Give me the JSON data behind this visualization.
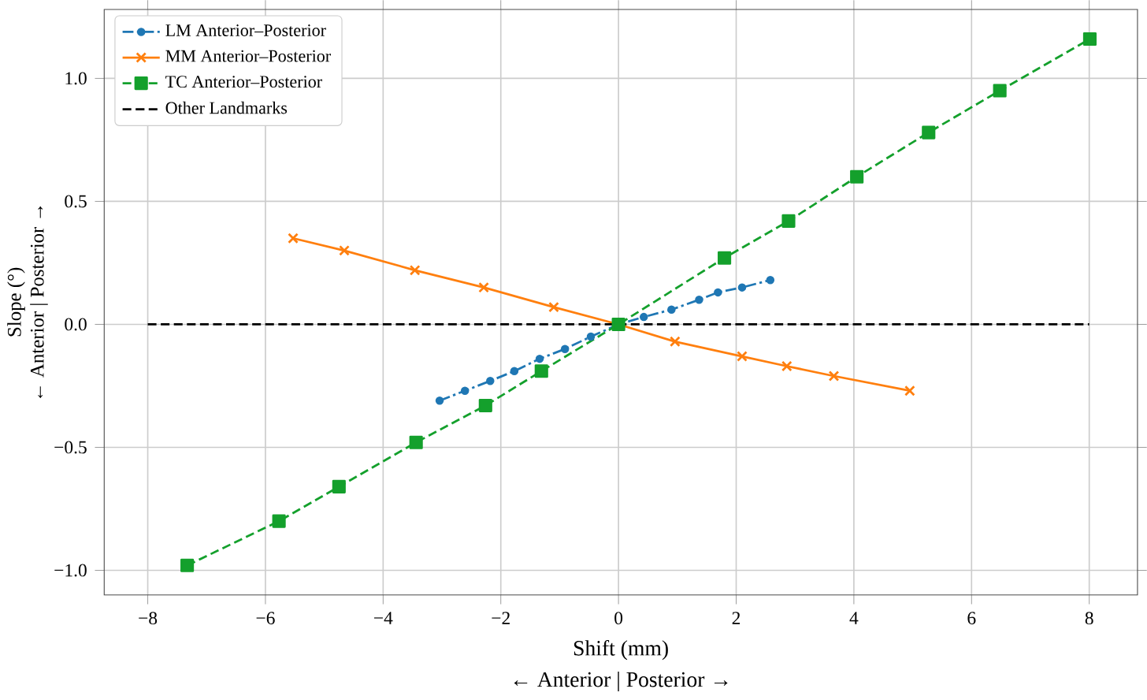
{
  "chart_data": {
    "type": "line",
    "xlabel": "Shift (mm)",
    "ylabel": "Slope (°)",
    "annotations": [
      "← Anterior   |   Posterior →",
      "← Anterior   |   Posterior →"
    ],
    "xlim": [
      -8.74,
      8.82
    ],
    "ylim": [
      -1.1,
      1.28
    ],
    "xticks": [
      {
        "value": -8,
        "label": "−8"
      },
      {
        "value": -6,
        "label": "−6"
      },
      {
        "value": -4,
        "label": "−4"
      },
      {
        "value": -2,
        "label": "−2"
      },
      0,
      2,
      4,
      6,
      8
    ],
    "yticks": [
      {
        "value": -1,
        "label": "−1.0"
      },
      {
        "value": -0.5,
        "label": "−0.5"
      },
      {
        "value": 0,
        "label": "0.0"
      },
      {
        "value": 0.5,
        "label": "0.5"
      },
      {
        "value": 1,
        "label": "1.0"
      }
    ],
    "grid": true,
    "legend": "top left",
    "series": [
      {
        "name": "LM Anterior–Posterior",
        "color": "#1f77b4",
        "marker": "circle",
        "line_style": "dashdot",
        "x": [
          -3.04,
          -2.61,
          -2.18,
          -1.77,
          -1.34,
          -0.91,
          -0.47,
          0,
          0.43,
          0.9,
          1.37,
          1.69,
          2.1,
          2.58
        ],
        "values": [
          -0.31,
          -0.27,
          -0.23,
          -0.19,
          -0.14,
          -0.1,
          -0.05,
          0,
          0.03,
          0.06,
          0.1,
          0.13,
          0.15,
          0.18
        ]
      },
      {
        "name": "MM Anterior–Posterior",
        "color": "#ff7f0e",
        "marker": "cross",
        "line_style": "solid",
        "x": [
          -5.53,
          -4.66,
          -3.46,
          -2.29,
          -1.1,
          0,
          0.96,
          2.1,
          2.86,
          3.66,
          4.95
        ],
        "values": [
          0.35,
          0.3,
          0.22,
          0.15,
          0.07,
          0,
          -0.07,
          -0.13,
          -0.17,
          -0.21,
          -0.27
        ]
      },
      {
        "name": "TC Anterior–Posterior",
        "color": "#14a02c",
        "marker": "square",
        "line_style": "dashed",
        "x": [
          -7.33,
          -5.77,
          -4.75,
          -3.44,
          -2.26,
          -1.31,
          0,
          1.8,
          2.89,
          4.05,
          5.27,
          6.48,
          8.01
        ],
        "values": [
          -0.98,
          -0.8,
          -0.66,
          -0.48,
          -0.33,
          -0.19,
          0,
          0.27,
          0.42,
          0.6,
          0.78,
          0.95,
          1.16
        ]
      },
      {
        "name": "Other Landmarks",
        "color": "#000000",
        "marker": "none",
        "line_style": "dashed",
        "x": [
          -8,
          8
        ],
        "values": [
          0,
          0
        ]
      }
    ]
  }
}
